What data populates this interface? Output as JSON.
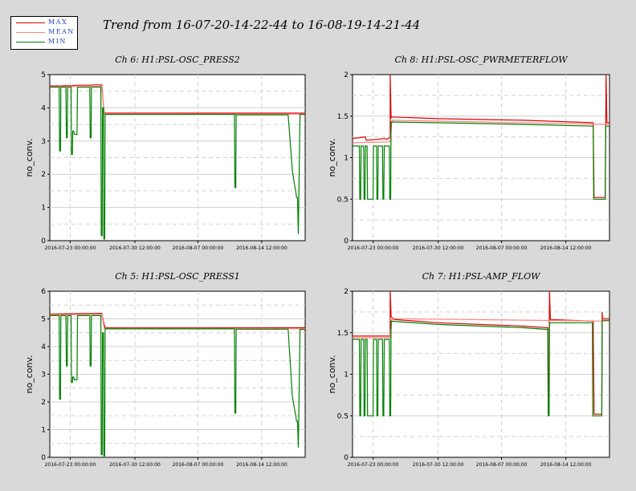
{
  "title": "Trend from 16-07-20-14-22-44 to 16-08-19-14-21-44",
  "legend": {
    "items": [
      {
        "label": "MAX",
        "color": "#e00000"
      },
      {
        "label": "MEAN",
        "color": "#ff8080"
      },
      {
        "label": "MIN",
        "color": "#008000"
      }
    ]
  },
  "colors": {
    "max": "#e00000",
    "mean": "#ff8080",
    "min": "#008000"
  },
  "chart_data": [
    {
      "type": "line",
      "title": "Ch 6: H1:PSL-OSC_PRESS2",
      "ylabel": "no_conv.",
      "xlabel": "",
      "ylim": [
        0,
        5
      ],
      "xlim": [
        0,
        30
      ],
      "yticks": [
        "0",
        "1",
        "2",
        "3",
        "4",
        "5"
      ],
      "xticks": [
        {
          "x": 2.4,
          "label": "2016-07-23 00:00:00"
        },
        {
          "x": 10.0,
          "label": "2016-07-30 12:00:00"
        },
        {
          "x": 17.4,
          "label": "2016-08-07 00:00:00"
        },
        {
          "x": 24.9,
          "label": "2016-08-14 12:00:00"
        }
      ],
      "series": [
        {
          "name": "MAX",
          "color": "#e00000",
          "x": [
            0,
            1.5,
            1.7,
            2.5,
            2.6,
            2.9,
            3.0,
            4.8,
            5.0,
            6.1,
            6.3,
            6.4,
            6.5,
            30
          ],
          "values": [
            4.66,
            4.66,
            4.67,
            4.66,
            4.67,
            4.67,
            4.68,
            4.68,
            4.69,
            4.69,
            4.1,
            3.84,
            3.84,
            3.84
          ]
        },
        {
          "name": "MEAN",
          "color": "#ff8080",
          "x": [
            0,
            6.1,
            6.4,
            30
          ],
          "values": [
            4.63,
            4.65,
            3.82,
            3.81
          ]
        },
        {
          "name": "MIN",
          "color": "#008000",
          "x": [
            0,
            1.1,
            1.15,
            1.25,
            1.3,
            1.9,
            1.95,
            2.05,
            2.1,
            2.5,
            2.55,
            2.65,
            2.7,
            2.8,
            2.9,
            3.2,
            3.25,
            4.7,
            4.75,
            4.85,
            4.9,
            6.0,
            6.05,
            6.15,
            6.2,
            6.3,
            6.35,
            6.45,
            6.5,
            21.7,
            21.75,
            21.85,
            21.9,
            28.0,
            28.5,
            29.0,
            29.1,
            29.2,
            29.4,
            30
          ],
          "values": [
            4.62,
            4.62,
            2.7,
            2.7,
            4.62,
            4.62,
            3.1,
            3.1,
            4.62,
            4.62,
            2.6,
            2.6,
            3.3,
            3.3,
            3.2,
            3.2,
            4.62,
            4.62,
            3.1,
            3.1,
            4.62,
            4.62,
            0.15,
            0.15,
            4.0,
            4.0,
            0.05,
            0.05,
            3.8,
            3.8,
            1.6,
            1.6,
            3.79,
            3.79,
            2.1,
            1.3,
            1.3,
            0.2,
            3.8,
            3.8
          ]
        }
      ]
    },
    {
      "type": "line",
      "title": "Ch 8: H1:PSL-OSC_PWRMETERFLOW",
      "ylabel": "no_conv.",
      "xlabel": "",
      "ylim": [
        0,
        2
      ],
      "xlim": [
        0,
        30
      ],
      "yticks": [
        "0",
        "0.5",
        "1",
        "1.5",
        "2"
      ],
      "xticks": [
        {
          "x": 2.4,
          "label": "2016-07-23 00:00:00"
        },
        {
          "x": 10.0,
          "label": "2016-07-30 12:00:00"
        },
        {
          "x": 17.4,
          "label": "2016-08-07 00:00:00"
        },
        {
          "x": 24.9,
          "label": "2016-08-14 12:00:00"
        }
      ],
      "series": [
        {
          "name": "MAX",
          "color": "#e00000",
          "x": [
            0,
            1.5,
            1.6,
            3.8,
            4.0,
            4.3,
            4.4,
            4.4,
            4.5,
            4.6,
            10,
            20,
            28.1,
            28.2,
            28.3,
            29.5,
            29.6,
            29.7,
            30
          ],
          "values": [
            1.23,
            1.25,
            1.21,
            1.23,
            1.22,
            1.24,
            1.24,
            2.0,
            1.48,
            1.49,
            1.47,
            1.45,
            1.42,
            0.52,
            0.52,
            0.52,
            2.0,
            1.42,
            1.42
          ]
        },
        {
          "name": "MEAN",
          "color": "#ff8080",
          "x": [
            0,
            4.4,
            4.6,
            30
          ],
          "values": [
            1.18,
            1.19,
            1.45,
            1.4
          ]
        },
        {
          "name": "MIN",
          "color": "#008000",
          "x": [
            0,
            0.8,
            0.85,
            0.95,
            1.0,
            1.3,
            1.35,
            1.45,
            1.5,
            1.7,
            1.75,
            2.4,
            2.45,
            2.8,
            2.85,
            2.95,
            3.0,
            3.5,
            3.55,
            3.65,
            3.7,
            4.3,
            4.35,
            4.45,
            4.5,
            10,
            20,
            28.1,
            28.15,
            28.2,
            29.5,
            29.55,
            30
          ],
          "values": [
            1.14,
            1.14,
            0.5,
            0.5,
            1.14,
            1.14,
            0.5,
            0.5,
            1.14,
            1.14,
            0.5,
            0.5,
            1.14,
            1.14,
            0.5,
            0.5,
            1.14,
            1.14,
            0.5,
            0.5,
            1.14,
            1.14,
            0.5,
            0.5,
            1.43,
            1.42,
            1.4,
            1.38,
            0.5,
            0.5,
            0.5,
            1.38,
            1.38
          ]
        }
      ]
    },
    {
      "type": "line",
      "title": "Ch 5: H1:PSL-OSC_PRESS1",
      "ylabel": "no_conv.",
      "xlabel": "",
      "ylim": [
        0,
        6
      ],
      "xlim": [
        0,
        30
      ],
      "yticks": [
        "0",
        "1",
        "2",
        "3",
        "4",
        "5",
        "6"
      ],
      "xticks": [
        {
          "x": 2.4,
          "label": "2016-07-23 00:00:00"
        },
        {
          "x": 10.0,
          "label": "2016-07-30 12:00:00"
        },
        {
          "x": 17.4,
          "label": "2016-08-07 00:00:00"
        },
        {
          "x": 24.9,
          "label": "2016-08-14 12:00:00"
        }
      ],
      "series": [
        {
          "name": "MAX",
          "color": "#e00000",
          "x": [
            0,
            6.1,
            6.3,
            6.5,
            30
          ],
          "values": [
            5.18,
            5.2,
            4.9,
            4.68,
            4.68
          ]
        },
        {
          "name": "MEAN",
          "color": "#ff8080",
          "x": [
            0,
            6.1,
            6.4,
            30
          ],
          "values": [
            5.15,
            5.17,
            4.66,
            4.65
          ]
        },
        {
          "name": "MIN",
          "color": "#008000",
          "x": [
            0,
            1.1,
            1.15,
            1.25,
            1.3,
            1.9,
            1.95,
            2.05,
            2.1,
            2.5,
            2.55,
            2.65,
            2.7,
            2.8,
            2.9,
            3.2,
            3.25,
            4.7,
            4.75,
            4.85,
            4.9,
            6.0,
            6.05,
            6.15,
            6.2,
            6.3,
            6.35,
            6.45,
            6.5,
            21.7,
            21.75,
            21.85,
            21.9,
            28.0,
            28.5,
            29.0,
            29.1,
            29.2,
            29.4,
            30
          ],
          "values": [
            5.12,
            5.12,
            2.1,
            2.1,
            5.12,
            5.12,
            3.3,
            3.3,
            5.12,
            5.12,
            2.7,
            2.7,
            2.9,
            2.9,
            2.8,
            2.8,
            5.12,
            5.12,
            3.3,
            3.3,
            5.12,
            5.12,
            0.1,
            0.1,
            4.5,
            4.5,
            0.05,
            0.05,
            4.64,
            4.64,
            1.6,
            1.6,
            4.63,
            4.63,
            2.2,
            1.3,
            1.3,
            0.35,
            4.62,
            4.62
          ]
        }
      ]
    },
    {
      "type": "line",
      "title": "Ch 7: H1:PSL-AMP_FLOW",
      "ylabel": "no_conv.",
      "xlabel": "",
      "ylim": [
        0,
        2
      ],
      "xlim": [
        0,
        30
      ],
      "yticks": [
        "0",
        "0.5",
        "1",
        "1.5",
        "2"
      ],
      "xticks": [
        {
          "x": 2.4,
          "label": "2016-07-23 00:00:00"
        },
        {
          "x": 10.0,
          "label": "2016-07-30 12:00:00"
        },
        {
          "x": 17.4,
          "label": "2016-08-07 00:00:00"
        },
        {
          "x": 24.9,
          "label": "2016-08-14 12:00:00"
        }
      ],
      "series": [
        {
          "name": "MAX",
          "color": "#e00000",
          "x": [
            0,
            4.3,
            4.4,
            4.4,
            4.5,
            4.8,
            10,
            20,
            22.8,
            22.85,
            22.9,
            23.0,
            23.1,
            28.0,
            28.1,
            28.2,
            29.1,
            29.15,
            29.2,
            30
          ],
          "values": [
            1.46,
            1.46,
            1.46,
            2.0,
            1.7,
            1.66,
            1.62,
            1.58,
            1.56,
            0.52,
            0.52,
            2.0,
            1.66,
            1.64,
            1.64,
            0.52,
            0.52,
            1.75,
            1.67,
            1.67
          ]
        },
        {
          "name": "MEAN",
          "color": "#ff8080",
          "x": [
            0,
            4.4,
            4.6,
            30
          ],
          "values": [
            1.44,
            1.44,
            1.67,
            1.64
          ]
        },
        {
          "name": "MIN",
          "color": "#008000",
          "x": [
            0,
            0.8,
            0.85,
            0.95,
            1.0,
            1.3,
            1.35,
            1.45,
            1.5,
            1.7,
            1.75,
            2.4,
            2.45,
            2.8,
            2.85,
            2.95,
            3.0,
            3.5,
            3.55,
            3.65,
            3.7,
            4.3,
            4.35,
            4.45,
            4.5,
            10,
            20,
            22.8,
            22.85,
            22.95,
            23.0,
            28.0,
            28.05,
            29.1,
            29.15,
            30
          ],
          "values": [
            1.42,
            1.42,
            0.5,
            0.5,
            1.42,
            1.42,
            0.5,
            0.5,
            1.42,
            1.42,
            0.5,
            0.5,
            1.42,
            1.42,
            0.5,
            0.5,
            1.42,
            1.42,
            0.5,
            0.5,
            1.42,
            1.42,
            0.5,
            0.5,
            1.64,
            1.6,
            1.56,
            1.54,
            0.5,
            0.5,
            1.62,
            1.62,
            0.5,
            0.5,
            1.65,
            1.65
          ]
        }
      ]
    }
  ]
}
